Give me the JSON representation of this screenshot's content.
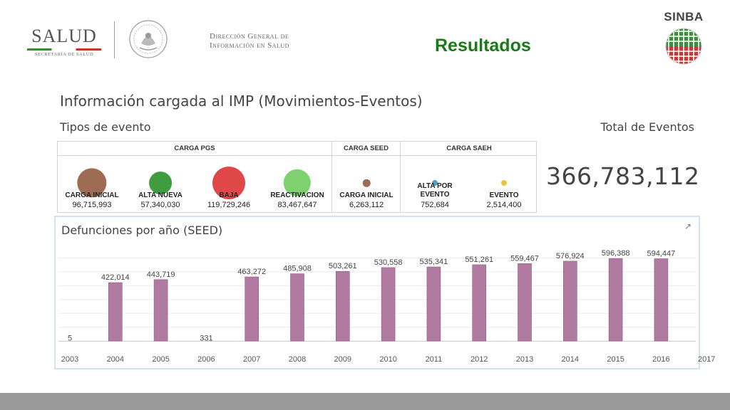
{
  "header": {
    "logo_word": "SALUD",
    "logo_subtitle": "SECRETARÍA DE SALUD",
    "seal_icon": "mexican-coat-of-arms-seal",
    "dgis_line1": "Dirección General de",
    "dgis_line2": "Información en Salud",
    "page_heading": "Resultados",
    "sinba_label": "SINBA",
    "sinba_icon": "sinba-globe-icon"
  },
  "dashboard": {
    "title": "Información cargada al IMP (Movimientos-Eventos)",
    "subtitle": "Tipos de evento",
    "total_label": "Total de Eventos",
    "total_value": "366,783,112"
  },
  "event_groups": [
    {
      "title": "CARGA PGS",
      "items": [
        {
          "label": [
            "CARGA INICIAL"
          ],
          "value": "96,715,993",
          "count": 96715993,
          "color": "#9e6b53"
        },
        {
          "label": [
            "ALTA NUEVA"
          ],
          "value": "57,340,030",
          "count": 57340030,
          "color": "#3f9c3f"
        },
        {
          "label": [
            "BAJA"
          ],
          "value": "119,729,246",
          "count": 119729246,
          "color": "#e04848"
        },
        {
          "label": [
            "REACTIVACION"
          ],
          "value": "83,467,647",
          "count": 83467647,
          "color": "#7fd16f"
        }
      ]
    },
    {
      "title": "CARGA SEED",
      "items": [
        {
          "label": [
            "CARGA INICIAL"
          ],
          "value": "6,263,112",
          "count": 6263112,
          "color": "#9e6b53"
        }
      ]
    },
    {
      "title": "CARGA SAEH",
      "items": [
        {
          "label": [
            "ALTA POR",
            "EVENTO"
          ],
          "value": "752,684",
          "count": 752684,
          "color": "#4aa3c8"
        },
        {
          "label": [
            "EVENTO"
          ],
          "value": "2,514,400",
          "count": 2514400,
          "color": "#e8c53a"
        }
      ]
    }
  ],
  "chart_panel": {
    "title": "Defunciones por año  (SEED)",
    "expand_icon": "external-link-icon"
  },
  "chart_data": {
    "type": "bar",
    "title": "Defunciones por año  (SEED)",
    "x_ticks": [
      "2003",
      "2004",
      "2005",
      "2006",
      "2007",
      "2008",
      "2009",
      "2010",
      "2011",
      "2012",
      "2013",
      "2014",
      "2015",
      "2016",
      "2017"
    ],
    "bars": [
      {
        "year": "2003",
        "value": 5,
        "label": "5"
      },
      {
        "year": "2004",
        "value": 422014,
        "label": "422,014"
      },
      {
        "year": "2005",
        "value": 443719,
        "label": "443,719"
      },
      {
        "year": "2006",
        "value": 331,
        "label": "331"
      },
      {
        "year": "2007",
        "value": 463272,
        "label": "463,272"
      },
      {
        "year": "2008",
        "value": 485908,
        "label": "485,908"
      },
      {
        "year": "2009",
        "value": 503261,
        "label": "503,261"
      },
      {
        "year": "2010",
        "value": 530558,
        "label": "530,558"
      },
      {
        "year": "2011",
        "value": 535341,
        "label": "535,341"
      },
      {
        "year": "2012",
        "value": 551261,
        "label": "551,261"
      },
      {
        "year": "2013",
        "value": 559467,
        "label": "559,467"
      },
      {
        "year": "2014",
        "value": 576924,
        "label": "576,924"
      },
      {
        "year": "2015",
        "value": 596388,
        "label": "596,388"
      },
      {
        "year": "2016",
        "value": 594447,
        "label": "594,447"
      }
    ],
    "ylim": [
      0,
      700000
    ],
    "grid": true,
    "bar_color": "#b07aa1",
    "xlabel": "",
    "ylabel": ""
  }
}
